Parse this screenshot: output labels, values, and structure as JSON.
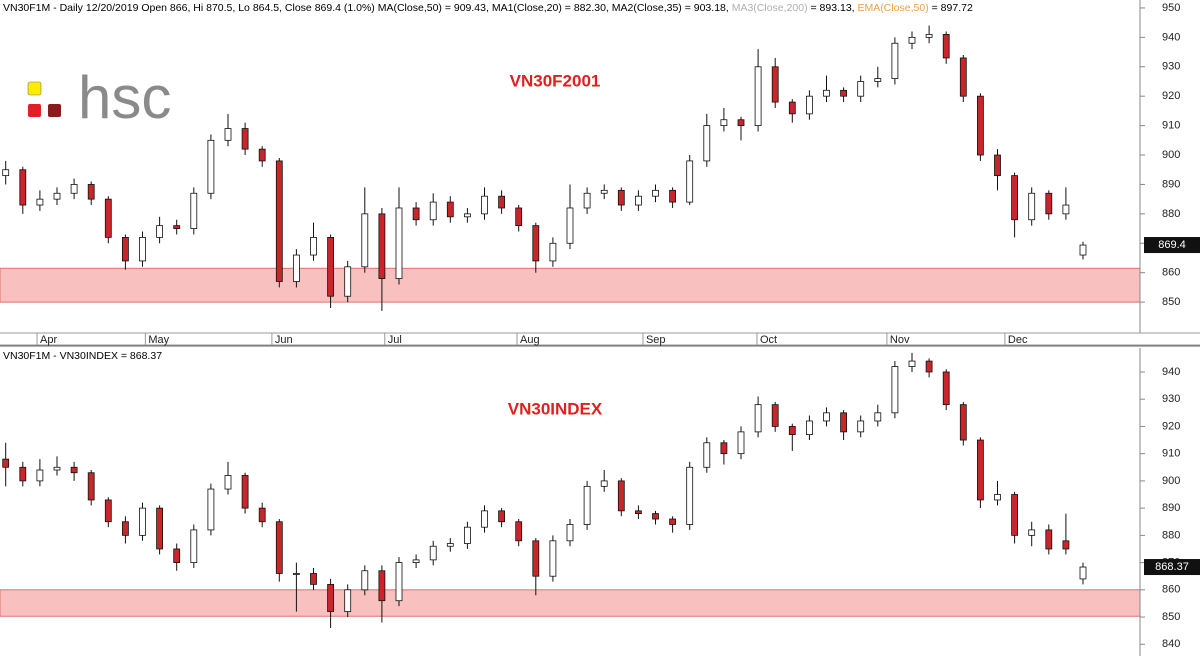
{
  "logo": "hsc",
  "chart_data": [
    {
      "type": "candlestick",
      "header": [
        {
          "text": "VN30F1M - Daily 12/20/2019 Open 866, Hi 870.5, Lo 864.5, Close 869.4 (1.0%) MA(Close,50) = 909.43, MA1(Close,20) = 882.30, MA2(Close,35) = 903.18, ",
          "color": "#000000"
        },
        {
          "text": "MA3(Close,200)",
          "color": "#b0b0b0"
        },
        {
          "text": " = 893.13, ",
          "color": "#000000"
        },
        {
          "text": "EMA(Close,50)",
          "color": "#f0a040"
        },
        {
          "text": " = 897.72",
          "color": "#000000"
        }
      ],
      "title": "VN30F2001",
      "title_color": "#e02020",
      "x": [
        1,
        4,
        7,
        10,
        13,
        16,
        19,
        22,
        25,
        28,
        31,
        34,
        37,
        40,
        43,
        46,
        49,
        52,
        55,
        58,
        61,
        64,
        67,
        70,
        73,
        76,
        79,
        82,
        85,
        88,
        91,
        94,
        97,
        100,
        103,
        106,
        109,
        112,
        115,
        118,
        121,
        124,
        127,
        130,
        133,
        136,
        139,
        142,
        145,
        148,
        151,
        154,
        157,
        160,
        163,
        166,
        169,
        172,
        175,
        178,
        181,
        184,
        187,
        190
      ],
      "ohlc": [
        [
          893,
          898,
          890,
          895
        ],
        [
          895,
          896,
          880,
          883
        ],
        [
          883,
          888,
          881,
          885
        ],
        [
          885,
          889,
          883,
          887
        ],
        [
          887,
          892,
          885,
          890
        ],
        [
          890,
          891,
          883,
          885
        ],
        [
          885,
          886,
          870,
          872
        ],
        [
          872,
          873,
          861,
          864
        ],
        [
          864,
          874,
          862,
          872
        ],
        [
          872,
          879,
          870,
          876
        ],
        [
          876,
          878,
          873,
          875
        ],
        [
          875,
          889,
          873,
          887
        ],
        [
          887,
          907,
          885,
          905
        ],
        [
          905,
          914,
          903,
          909
        ],
        [
          909,
          911,
          900,
          902
        ],
        [
          902,
          903,
          896,
          898
        ],
        [
          898,
          899,
          855,
          857
        ],
        [
          857,
          868,
          855,
          866
        ],
        [
          866,
          877,
          864,
          872
        ],
        [
          872,
          873,
          848,
          852
        ],
        [
          852,
          864,
          850,
          862
        ],
        [
          862,
          889,
          860,
          880
        ],
        [
          880,
          882,
          847,
          858
        ],
        [
          858,
          889,
          856,
          882
        ],
        [
          882,
          884,
          876,
          878
        ],
        [
          878,
          887,
          876,
          884
        ],
        [
          884,
          886,
          877,
          879
        ],
        [
          879,
          882,
          877,
          880
        ],
        [
          880,
          889,
          878,
          886
        ],
        [
          886,
          888,
          880,
          882
        ],
        [
          882,
          883,
          874,
          876
        ],
        [
          876,
          877,
          860,
          864
        ],
        [
          864,
          872,
          862,
          870
        ],
        [
          870,
          890,
          868,
          882
        ],
        [
          882,
          889,
          880,
          887
        ],
        [
          887,
          890,
          885,
          888
        ],
        [
          888,
          889,
          881,
          883
        ],
        [
          883,
          888,
          881,
          886
        ],
        [
          886,
          890,
          884,
          888
        ],
        [
          888,
          889,
          882,
          884
        ],
        [
          884,
          900,
          883,
          898
        ],
        [
          898,
          914,
          896,
          910
        ],
        [
          910,
          916,
          908,
          912
        ],
        [
          912,
          913,
          905,
          910
        ],
        [
          910,
          936,
          908,
          930
        ],
        [
          930,
          933,
          916,
          918
        ],
        [
          918,
          919,
          911,
          914
        ],
        [
          914,
          922,
          912,
          920
        ],
        [
          920,
          927,
          918,
          922
        ],
        [
          922,
          923,
          918,
          920
        ],
        [
          920,
          927,
          918,
          925
        ],
        [
          925,
          930,
          923,
          926
        ],
        [
          926,
          940,
          924,
          938
        ],
        [
          938,
          942,
          936,
          940
        ],
        [
          940,
          944,
          938,
          941
        ],
        [
          941,
          942,
          931,
          933
        ],
        [
          933,
          934,
          918,
          920
        ],
        [
          920,
          921,
          898,
          900
        ],
        [
          900,
          902,
          888,
          893
        ],
        [
          893,
          894,
          872,
          878
        ],
        [
          878,
          889,
          876,
          887
        ],
        [
          887,
          888,
          878,
          880
        ],
        [
          880,
          889,
          878,
          883
        ],
        [
          866,
          870.5,
          864.5,
          869.4
        ]
      ],
      "up_color": "#ffffff",
      "down_color": "#c8262b",
      "band": {
        "from": 850,
        "to": 861.5,
        "color": "#f9c0c0"
      },
      "last_value": 869.4,
      "last_value_label": "869.4",
      "xlim": [
        0,
        200
      ],
      "xticks": [
        {
          "value": 6.5,
          "label": "Apr"
        },
        {
          "value": 25.5,
          "label": "May"
        },
        {
          "value": 47.7,
          "label": "Jun"
        },
        {
          "value": 67.5,
          "label": "Jul"
        },
        {
          "value": 90.7,
          "label": "Aug"
        },
        {
          "value": 112.8,
          "label": "Sep"
        },
        {
          "value": 132.8,
          "label": "Oct"
        },
        {
          "value": 155.6,
          "label": "Nov"
        },
        {
          "value": 176.3,
          "label": "Dec"
        }
      ],
      "ylim": [
        839.5,
        952.7
      ],
      "yticks": [
        850,
        860,
        870,
        880,
        890,
        900,
        910,
        920,
        930,
        940,
        950
      ]
    },
    {
      "type": "candlestick",
      "header": [
        {
          "text": "VN30F1M - VN30INDEX = 868.37",
          "color": "#000000"
        }
      ],
      "title": "VN30INDEX",
      "title_color": "#e02020",
      "x": [
        1,
        4,
        7,
        10,
        13,
        16,
        19,
        22,
        25,
        28,
        31,
        34,
        37,
        40,
        43,
        46,
        49,
        52,
        55,
        58,
        61,
        64,
        67,
        70,
        73,
        76,
        79,
        82,
        85,
        88,
        91,
        94,
        97,
        100,
        103,
        106,
        109,
        112,
        115,
        118,
        121,
        124,
        127,
        130,
        133,
        136,
        139,
        142,
        145,
        148,
        151,
        154,
        157,
        160,
        163,
        166,
        169,
        172,
        175,
        178,
        181,
        184,
        187,
        190
      ],
      "ohlc": [
        [
          908,
          914,
          898,
          905
        ],
        [
          905,
          907,
          898,
          900
        ],
        [
          900,
          908,
          898,
          904
        ],
        [
          904,
          909,
          902,
          905
        ],
        [
          905,
          907,
          900,
          903
        ],
        [
          903,
          904,
          891,
          893
        ],
        [
          893,
          894,
          883,
          885
        ],
        [
          885,
          887,
          877,
          880
        ],
        [
          880,
          892,
          878,
          890
        ],
        [
          890,
          891,
          873,
          875
        ],
        [
          875,
          877,
          867,
          870
        ],
        [
          870,
          884,
          868,
          882
        ],
        [
          882,
          899,
          880,
          897
        ],
        [
          897,
          907,
          895,
          902
        ],
        [
          902,
          903,
          888,
          890
        ],
        [
          890,
          892,
          883,
          885
        ],
        [
          885,
          886,
          863,
          866
        ],
        [
          866,
          870,
          852,
          866
        ],
        [
          866,
          868,
          860,
          862
        ],
        [
          862,
          864,
          846,
          852
        ],
        [
          852,
          862,
          850,
          860
        ],
        [
          860,
          869,
          858,
          867
        ],
        [
          867,
          869,
          848,
          856
        ],
        [
          856,
          872,
          854,
          870
        ],
        [
          870,
          873,
          868,
          871
        ],
        [
          871,
          878,
          869,
          876
        ],
        [
          876,
          879,
          874,
          877
        ],
        [
          877,
          885,
          875,
          883
        ],
        [
          883,
          891,
          881,
          889
        ],
        [
          889,
          890,
          883,
          885
        ],
        [
          885,
          886,
          876,
          878
        ],
        [
          878,
          879,
          858,
          865
        ],
        [
          865,
          880,
          863,
          878
        ],
        [
          878,
          886,
          876,
          884
        ],
        [
          884,
          900,
          882,
          898
        ],
        [
          898,
          904,
          896,
          900
        ],
        [
          900,
          901,
          887,
          889
        ],
        [
          889,
          891,
          886,
          888
        ],
        [
          888,
          889,
          884,
          886
        ],
        [
          886,
          887,
          881,
          884
        ],
        [
          884,
          907,
          882,
          905
        ],
        [
          905,
          916,
          903,
          914
        ],
        [
          914,
          915,
          906,
          910
        ],
        [
          910,
          920,
          908,
          918
        ],
        [
          918,
          931,
          916,
          928
        ],
        [
          928,
          929,
          918,
          920
        ],
        [
          920,
          921,
          911,
          917
        ],
        [
          917,
          924,
          915,
          922
        ],
        [
          922,
          927,
          920,
          925
        ],
        [
          925,
          926,
          915,
          918
        ],
        [
          918,
          924,
          916,
          922
        ],
        [
          922,
          928,
          920,
          925
        ],
        [
          925,
          944,
          923,
          942
        ],
        [
          942,
          947,
          940,
          944
        ],
        [
          944,
          945,
          938,
          940
        ],
        [
          940,
          941,
          926,
          928
        ],
        [
          928,
          929,
          913,
          915
        ],
        [
          915,
          916,
          890,
          893
        ],
        [
          893,
          900,
          891,
          895
        ],
        [
          895,
          896,
          877,
          880
        ],
        [
          880,
          885,
          876,
          882
        ],
        [
          882,
          884,
          873,
          875
        ],
        [
          878,
          888,
          873,
          875
        ],
        [
          864,
          870,
          862,
          868.37
        ]
      ],
      "up_color": "#ffffff",
      "down_color": "#c8262b",
      "band": {
        "from": 850.3,
        "to": 860,
        "color": "#f9c0c0"
      },
      "last_value": 868.37,
      "last_value_label": "868.37",
      "xlim": [
        0,
        200
      ],
      "ylim": [
        835.7,
        948.8
      ],
      "yticks": [
        840,
        850,
        860,
        870,
        880,
        890,
        900,
        910,
        920,
        930,
        940
      ]
    }
  ]
}
